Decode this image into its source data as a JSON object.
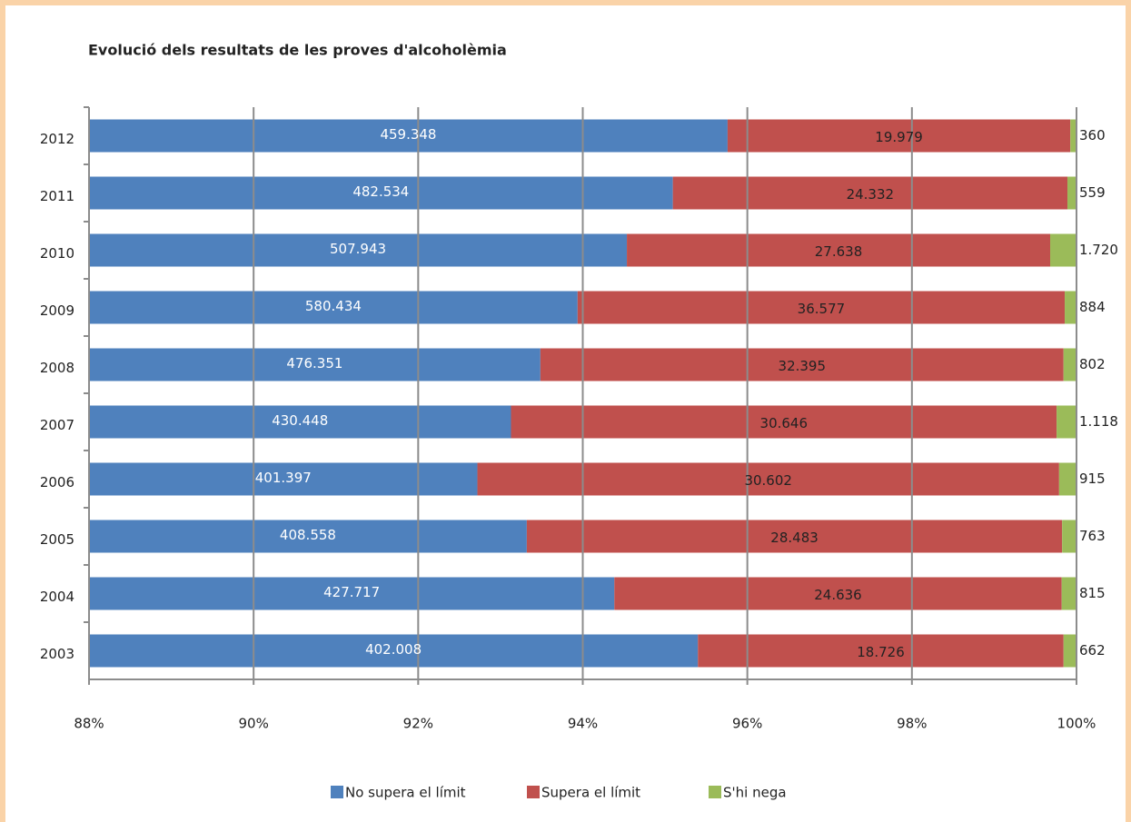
{
  "chart_data": {
    "type": "bar",
    "orientation": "horizontal",
    "stacking": "percent",
    "title": "Evolució dels resultats de les proves d'alcoholèmia",
    "categories": [
      "2012",
      "2011",
      "2010",
      "2009",
      "2008",
      "2007",
      "2006",
      "2005",
      "2004",
      "2003"
    ],
    "series": [
      {
        "name": "No supera el límit",
        "color": "#4f81bd",
        "values": [
          459348,
          482534,
          507943,
          580434,
          476351,
          430448,
          401397,
          408558,
          427717,
          402008
        ],
        "value_labels": [
          "459.348",
          "482.534",
          "507.943",
          "580.434",
          "476.351",
          "430.448",
          "401.397",
          "408.558",
          "427.717",
          "402.008"
        ]
      },
      {
        "name": "Supera el límit",
        "color": "#c0504d",
        "values": [
          19979,
          24332,
          27638,
          36577,
          32395,
          30646,
          30602,
          28483,
          24636,
          18726
        ],
        "value_labels": [
          "19.979",
          "24.332",
          "27.638",
          "36.577",
          "32.395",
          "30.646",
          "30.602",
          "28.483",
          "24.636",
          "18.726"
        ]
      },
      {
        "name": "S'hi nega",
        "color": "#9bbb59",
        "values": [
          360,
          559,
          1720,
          884,
          802,
          1118,
          915,
          763,
          815,
          662
        ],
        "value_labels": [
          "360",
          "559",
          "1.720",
          "884",
          "802",
          "1.118",
          "915",
          "763",
          "815",
          "662"
        ]
      }
    ],
    "xlim": [
      88,
      100
    ],
    "xticks": [
      {
        "value": 88,
        "label": "88%"
      },
      {
        "value": 90,
        "label": "90%"
      },
      {
        "value": 92,
        "label": "92%"
      },
      {
        "value": 94,
        "label": "94%"
      },
      {
        "value": 96,
        "label": "96%"
      },
      {
        "value": 98,
        "label": "98%"
      },
      {
        "value": 100,
        "label": "100%"
      }
    ],
    "grid": true,
    "legend": "bottom"
  }
}
